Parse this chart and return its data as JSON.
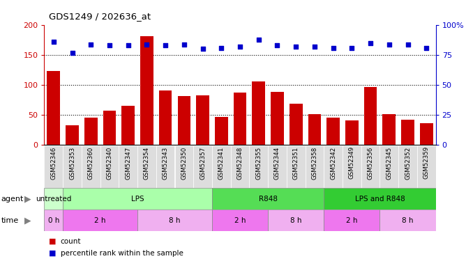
{
  "title": "GDS1249 / 202636_at",
  "samples": [
    "GSM52346",
    "GSM52353",
    "GSM52360",
    "GSM52340",
    "GSM52347",
    "GSM52354",
    "GSM52343",
    "GSM52350",
    "GSM52357",
    "GSM52341",
    "GSM52348",
    "GSM52355",
    "GSM52344",
    "GSM52351",
    "GSM52358",
    "GSM52342",
    "GSM52349",
    "GSM52356",
    "GSM52345",
    "GSM52352",
    "GSM52359"
  ],
  "counts": [
    124,
    33,
    46,
    57,
    65,
    182,
    91,
    82,
    83,
    47,
    87,
    106,
    89,
    69,
    52,
    46,
    41,
    97,
    52,
    42,
    36
  ],
  "percentiles": [
    86,
    77,
    84,
    83,
    83,
    84,
    83,
    84,
    80,
    81,
    82,
    88,
    83,
    82,
    82,
    81,
    81,
    85,
    84,
    84,
    81
  ],
  "bar_color": "#cc0000",
  "dot_color": "#0000cc",
  "ylim_left": [
    0,
    200
  ],
  "ylim_right": [
    0,
    100
  ],
  "yticks_left": [
    0,
    50,
    100,
    150,
    200
  ],
  "yticks_right": [
    0,
    25,
    50,
    75,
    100
  ],
  "yticklabels_right": [
    "0",
    "25",
    "50",
    "75",
    "100%"
  ],
  "grid_values": [
    50,
    100,
    150
  ],
  "agent_groups": [
    {
      "label": "untreated",
      "start": 0,
      "end": 1,
      "color": "#ccffcc"
    },
    {
      "label": "LPS",
      "start": 1,
      "end": 9,
      "color": "#aaffaa"
    },
    {
      "label": "R848",
      "start": 9,
      "end": 15,
      "color": "#55dd55"
    },
    {
      "label": "LPS and R848",
      "start": 15,
      "end": 21,
      "color": "#33cc33"
    }
  ],
  "time_groups": [
    {
      "label": "0 h",
      "start": 0,
      "end": 1,
      "color": "#f0b0f0"
    },
    {
      "label": "2 h",
      "start": 1,
      "end": 5,
      "color": "#ee77ee"
    },
    {
      "label": "8 h",
      "start": 5,
      "end": 9,
      "color": "#f0b0f0"
    },
    {
      "label": "2 h",
      "start": 9,
      "end": 12,
      "color": "#ee77ee"
    },
    {
      "label": "8 h",
      "start": 12,
      "end": 15,
      "color": "#f0b0f0"
    },
    {
      "label": "2 h",
      "start": 15,
      "end": 18,
      "color": "#ee77ee"
    },
    {
      "label": "8 h",
      "start": 18,
      "end": 21,
      "color": "#f0b0f0"
    }
  ],
  "legend_count_color": "#cc0000",
  "legend_pct_color": "#0000cc",
  "bg_color": "#ffffff",
  "plot_bg": "#ffffff",
  "border_color": "#888888",
  "tick_label_bg": "#dddddd"
}
